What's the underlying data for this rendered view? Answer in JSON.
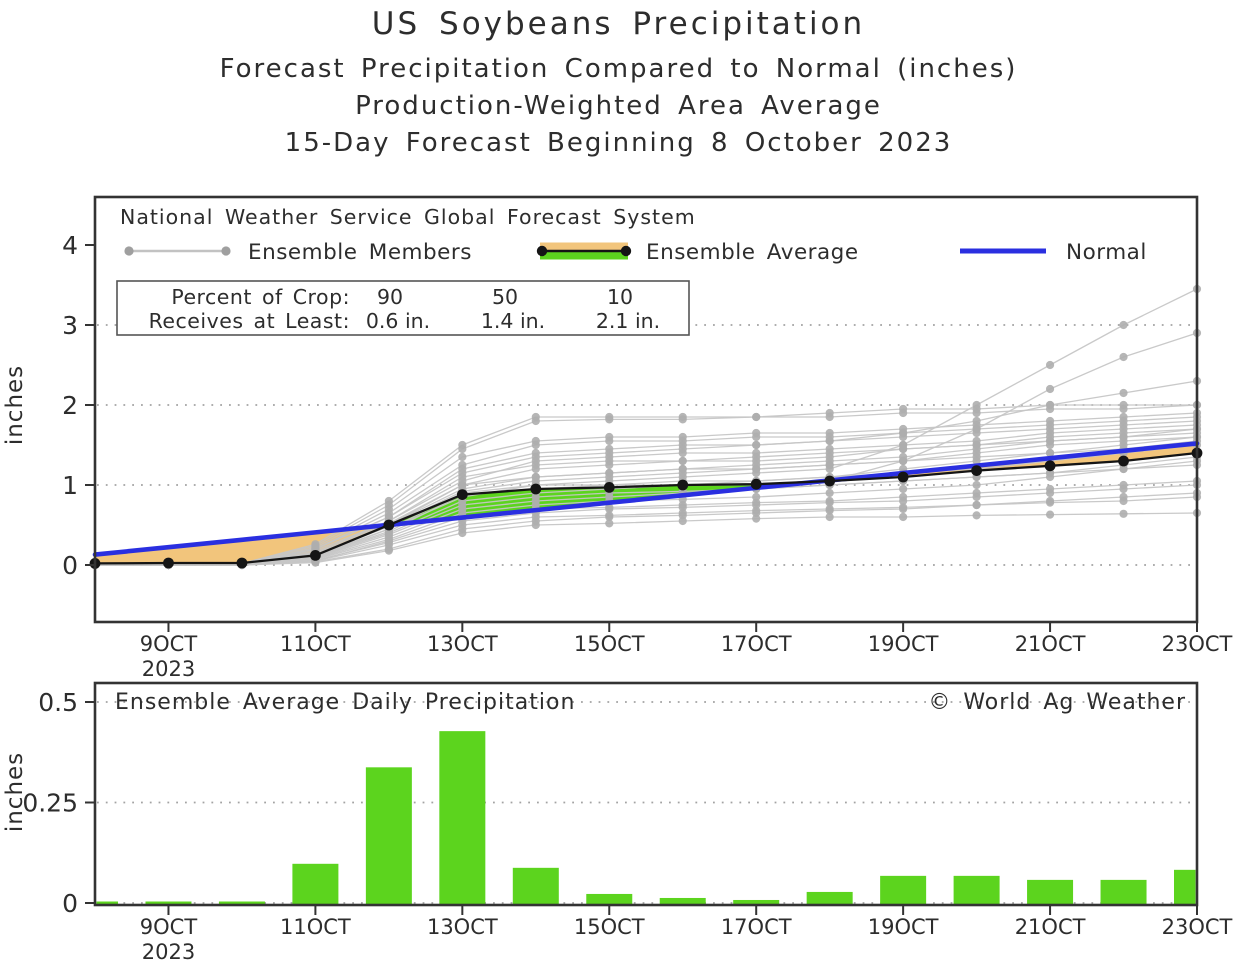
{
  "chart_data": [
    {
      "type": "line",
      "title": "US Soybeans Precipitation",
      "subtitle_lines": [
        "Forecast Precipitation Compared to Normal (inches)",
        "Production-Weighted Area Average",
        "15-Day Forecast Beginning 8 October 2023"
      ],
      "inner_heading": "National Weather Service Global Forecast System",
      "ylabel": "inches",
      "ylim": [
        -0.7,
        4.65
      ],
      "yticks": [
        0,
        1,
        2,
        3,
        4
      ],
      "grid": "dotted",
      "x_days": [
        8,
        9,
        10,
        11,
        12,
        13,
        14,
        15,
        16,
        17,
        18,
        19,
        20,
        21,
        22,
        23
      ],
      "categories": [
        "8OCT",
        "9OCT",
        "10OCT",
        "11OCT",
        "12OCT",
        "13OCT",
        "14OCT",
        "15OCT",
        "16OCT",
        "17OCT",
        "18OCT",
        "19OCT",
        "20OCT",
        "21OCT",
        "22OCT",
        "23OCT"
      ],
      "xtick_days": [
        9,
        11,
        13,
        15,
        17,
        19,
        21,
        23
      ],
      "xtick_labels": [
        "9OCT",
        "11OCT",
        "13OCT",
        "15OCT",
        "17OCT",
        "19OCT",
        "21OCT",
        "23OCT"
      ],
      "xtick_year": "2023",
      "legend_position": "top-inside",
      "legend": {
        "members_label": "Ensemble Members",
        "average_label": "Ensemble Average",
        "normal_label": "Normal"
      },
      "stats_box": {
        "row1_label": "Percent of Crop:",
        "row1_values": [
          "90",
          "50",
          "10"
        ],
        "row2_label": "Receives at Least:",
        "row2_values": [
          "0.6 in.",
          "1.4 in.",
          "2.1 in."
        ]
      },
      "colors": {
        "normal_line": "#2a2fe0",
        "average_line": "#151515",
        "above_normal_fill": "#5cd41e",
        "below_normal_fill": "#f2c57c",
        "member_line": "#c6c6c6",
        "member_dot": "#aeaeae",
        "grid": "#a3a3a3",
        "axis": "#333333"
      },
      "series": {
        "ensemble_average": {
          "name": "Ensemble Average",
          "values": [
            0.02,
            0.025,
            0.025,
            0.12,
            0.5,
            0.88,
            0.95,
            0.97,
            1.0,
            1.01,
            1.05,
            1.1,
            1.18,
            1.24,
            1.3,
            1.4
          ]
        },
        "normal": {
          "name": "Normal",
          "values": [
            0.13,
            0.223,
            0.315,
            0.408,
            0.501,
            0.593,
            0.686,
            0.779,
            0.871,
            0.964,
            1.057,
            1.149,
            1.242,
            1.335,
            1.427,
            1.52
          ]
        },
        "ensemble_members": [
          [
            0,
            0,
            0,
            0.05,
            0.3,
            0.6,
            0.7,
            0.72,
            0.75,
            0.78,
            0.8,
            0.85,
            0.9,
            0.95,
            1.0,
            1.05
          ],
          [
            0,
            0,
            0,
            0.08,
            0.35,
            0.7,
            0.8,
            0.85,
            0.9,
            0.95,
            1.0,
            1.05,
            1.1,
            1.15,
            1.2,
            1.3
          ],
          [
            0,
            0,
            0.01,
            0.1,
            0.45,
            0.9,
            1.0,
            1.0,
            1.05,
            1.05,
            1.1,
            1.15,
            1.2,
            1.3,
            1.4,
            1.5
          ],
          [
            0,
            0,
            0,
            0.12,
            0.5,
            1.0,
            1.1,
            1.15,
            1.2,
            1.2,
            1.25,
            1.3,
            1.35,
            1.4,
            1.5,
            1.6
          ],
          [
            0,
            0,
            0.02,
            0.15,
            0.55,
            1.1,
            1.25,
            1.3,
            1.3,
            1.35,
            1.4,
            1.45,
            1.5,
            1.55,
            1.6,
            1.65
          ],
          [
            0,
            0,
            0,
            0.2,
            0.6,
            1.2,
            1.4,
            1.45,
            1.5,
            1.5,
            1.55,
            1.6,
            1.65,
            1.7,
            1.75,
            1.8
          ],
          [
            0,
            0,
            0.01,
            0.22,
            0.7,
            1.35,
            1.55,
            1.6,
            1.6,
            1.65,
            1.65,
            1.7,
            1.75,
            1.8,
            1.85,
            1.9
          ],
          [
            0,
            0,
            0.02,
            0.26,
            0.8,
            1.5,
            1.85,
            1.85,
            1.85,
            1.85,
            1.9,
            1.95,
            1.95,
            2.0,
            2.0,
            2.0
          ],
          [
            0,
            0,
            0,
            0.1,
            0.4,
            0.8,
            0.9,
            0.95,
            1.0,
            1.0,
            1.05,
            1.3,
            1.7,
            2.2,
            2.6,
            2.9
          ],
          [
            0,
            0,
            0.01,
            0.12,
            0.45,
            0.85,
            1.0,
            1.05,
            1.1,
            1.15,
            1.2,
            1.5,
            2.0,
            2.5,
            3.0,
            3.45
          ],
          [
            0,
            0,
            0,
            0.05,
            0.25,
            0.5,
            0.6,
            0.62,
            0.65,
            0.68,
            0.7,
            0.72,
            0.75,
            0.78,
            0.8,
            0.85
          ],
          [
            0,
            0,
            0,
            0.06,
            0.28,
            0.55,
            0.65,
            0.7,
            0.72,
            0.75,
            0.78,
            0.8,
            0.85,
            0.9,
            0.95,
            1.0
          ],
          [
            0,
            0,
            0.01,
            0.09,
            0.38,
            0.75,
            0.85,
            0.9,
            0.92,
            0.95,
            1.0,
            1.05,
            1.1,
            1.15,
            1.25,
            1.35
          ],
          [
            0,
            0,
            0,
            0.11,
            0.42,
            0.88,
            0.95,
            1.0,
            1.0,
            1.05,
            1.1,
            1.2,
            1.3,
            1.4,
            1.45,
            1.55
          ],
          [
            0,
            0,
            0.02,
            0.14,
            0.5,
            0.95,
            1.1,
            1.15,
            1.2,
            1.25,
            1.3,
            1.35,
            1.45,
            1.55,
            1.6,
            1.7
          ],
          [
            0,
            0,
            0,
            0.18,
            0.55,
            1.05,
            1.3,
            1.35,
            1.4,
            1.4,
            1.45,
            1.5,
            1.55,
            1.65,
            1.7,
            1.75
          ],
          [
            0,
            0,
            0.01,
            0.2,
            0.65,
            1.25,
            1.5,
            1.55,
            1.55,
            1.6,
            1.6,
            1.65,
            1.7,
            1.75,
            1.8,
            1.85
          ],
          [
            0,
            0,
            0,
            0.07,
            0.32,
            0.65,
            0.75,
            0.8,
            0.82,
            0.85,
            0.9,
            0.95,
            1.0,
            1.1,
            1.2,
            1.25
          ],
          [
            0,
            0,
            0.01,
            0.13,
            0.48,
            0.92,
            1.05,
            1.1,
            1.15,
            1.2,
            1.25,
            1.3,
            1.4,
            1.5,
            1.55,
            1.6
          ],
          [
            0,
            0,
            0,
            0.16,
            0.52,
            1.0,
            1.2,
            1.25,
            1.3,
            1.3,
            1.35,
            1.45,
            1.5,
            1.6,
            1.65,
            1.7
          ],
          [
            0,
            0,
            0.02,
            0.24,
            0.75,
            1.45,
            1.8,
            1.82,
            1.82,
            1.85,
            1.85,
            1.9,
            1.9,
            1.95,
            1.95,
            2.0
          ],
          [
            0,
            0,
            0,
            0.04,
            0.2,
            0.45,
            0.55,
            0.6,
            0.62,
            0.65,
            0.68,
            0.7,
            0.75,
            0.8,
            0.85,
            0.9
          ],
          [
            0,
            0,
            0,
            0.03,
            0.18,
            0.4,
            0.5,
            0.52,
            0.55,
            0.58,
            0.6,
            0.6,
            0.62,
            0.63,
            0.64,
            0.65
          ],
          [
            0,
            0,
            0.01,
            0.2,
            0.6,
            1.15,
            1.35,
            1.4,
            1.45,
            1.5,
            1.55,
            1.65,
            1.8,
            2.0,
            2.15,
            2.3
          ]
        ]
      }
    },
    {
      "type": "bar",
      "inner_title": "Ensemble Average Daily Precipitation",
      "watermark": "© World Ag Weather",
      "ylabel": "inches",
      "ylim": [
        0,
        0.55
      ],
      "yticks": [
        0,
        0.25,
        0.5
      ],
      "ytick_labels": [
        "0",
        "0.25",
        "0.5"
      ],
      "grid": "dotted",
      "categories": [
        "8OCT",
        "9OCT",
        "10OCT",
        "11OCT",
        "12OCT",
        "13OCT",
        "14OCT",
        "15OCT",
        "16OCT",
        "17OCT",
        "18OCT",
        "19OCT",
        "20OCT",
        "21OCT",
        "22OCT",
        "23OCT"
      ],
      "xtick_days": [
        9,
        11,
        13,
        15,
        17,
        19,
        21,
        23
      ],
      "xtick_labels": [
        "9OCT",
        "11OCT",
        "13OCT",
        "15OCT",
        "17OCT",
        "19OCT",
        "21OCT",
        "23OCT"
      ],
      "xtick_year": "2023",
      "values": [
        0.005,
        0.005,
        0.005,
        0.1,
        0.34,
        0.43,
        0.09,
        0.025,
        0.015,
        0.01,
        0.03,
        0.07,
        0.07,
        0.06,
        0.06,
        0.085
      ],
      "bar_color": "#5cd41e"
    }
  ]
}
